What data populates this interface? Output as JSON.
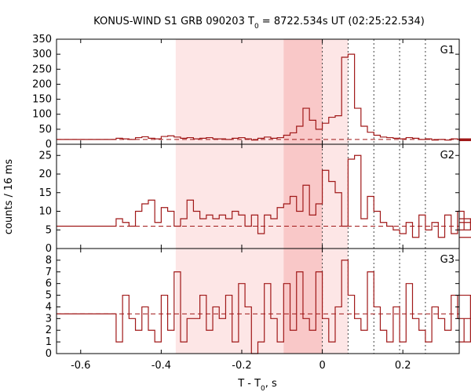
{
  "title_main": "KONUS-WIND S1 GRB 090203 T",
  "title_sub": "0",
  "title_rest": " = 8722.534s UT (02:25:22.534)",
  "ylabel": "counts / 16 ms",
  "xlabel_main": "T - T",
  "xlabel_sub": "0",
  "xlabel_rest": ", s",
  "colors": {
    "hist": "#a01818",
    "shade_light": "#fde6e6",
    "shade_dark": "#f9c8c8"
  },
  "chart_data": {
    "type": "step",
    "xlim": [
      -0.66,
      0.34
    ],
    "xticks": [
      -0.6,
      -0.4,
      -0.2,
      0,
      0.2
    ],
    "xtick_labels": [
      "-0.6",
      "-0.4",
      "-0.2",
      "0",
      "0.2"
    ],
    "shaded_intervals": [
      {
        "start": -0.364,
        "end": 0.064,
        "level": "light"
      },
      {
        "start": -0.096,
        "end": 0.0,
        "level": "dark"
      }
    ],
    "vertical_dotted_lines": [
      0.0,
      0.064,
      0.128,
      0.192,
      0.256
    ],
    "panels": [
      {
        "name": "G1",
        "ylim": [
          0,
          350
        ],
        "yticks": [
          0,
          50,
          100,
          150,
          200,
          250,
          300,
          350
        ],
        "background": 16,
        "pre_start": -0.66,
        "pre_value": 16,
        "bin_width": 0.016,
        "start": -0.512,
        "values": [
          20,
          18,
          16,
          22,
          25,
          20,
          18,
          26,
          28,
          24,
          20,
          22,
          18,
          20,
          22,
          18,
          18,
          16,
          20,
          22,
          18,
          14,
          20,
          24,
          20,
          22,
          30,
          38,
          60,
          120,
          80,
          50,
          70,
          90,
          95,
          290,
          300,
          120,
          60,
          40,
          30,
          24,
          22,
          20,
          18,
          22,
          20,
          16,
          18,
          14,
          16,
          14,
          18,
          16,
          12,
          14,
          18,
          16
        ]
      },
      {
        "name": "G2",
        "ylim": [
          0,
          28
        ],
        "yticks": [
          0,
          5,
          10,
          15,
          20,
          25
        ],
        "background": 6,
        "pre_start": -0.66,
        "pre_value": 6,
        "bin_width": 0.016,
        "start": -0.512,
        "values": [
          8,
          7,
          6,
          10,
          12,
          13,
          7,
          11,
          10,
          6,
          8,
          13,
          10,
          8,
          9,
          8,
          9,
          8,
          10,
          9,
          6,
          9,
          4,
          9,
          8,
          11,
          12,
          14,
          10,
          17,
          9,
          12,
          21,
          18,
          15,
          6,
          24,
          25,
          8,
          14,
          10,
          7,
          6,
          5,
          4,
          7,
          3,
          9,
          5,
          7,
          3,
          9,
          4,
          10,
          5,
          8,
          3,
          7
        ]
      },
      {
        "name": "G3",
        "ylim": [
          0,
          9
        ],
        "yticks": [
          0,
          1,
          2,
          3,
          4,
          5,
          6,
          7,
          8
        ],
        "background": 3.4,
        "pre_start": -0.66,
        "pre_value": 3.4,
        "bin_width": 0.016,
        "start": -0.512,
        "values": [
          1,
          5,
          3,
          2,
          4,
          2,
          1,
          5,
          2,
          7,
          1,
          3,
          3,
          5,
          2,
          4,
          3,
          5,
          1,
          6,
          4,
          0,
          1,
          6,
          3,
          1,
          6,
          2,
          7,
          3,
          2,
          7,
          3,
          1,
          4,
          8,
          5,
          3,
          2,
          7,
          4,
          2,
          1,
          4,
          1,
          6,
          3,
          2,
          1,
          4,
          3,
          2,
          5,
          3,
          1,
          5,
          3,
          3
        ]
      }
    ]
  }
}
